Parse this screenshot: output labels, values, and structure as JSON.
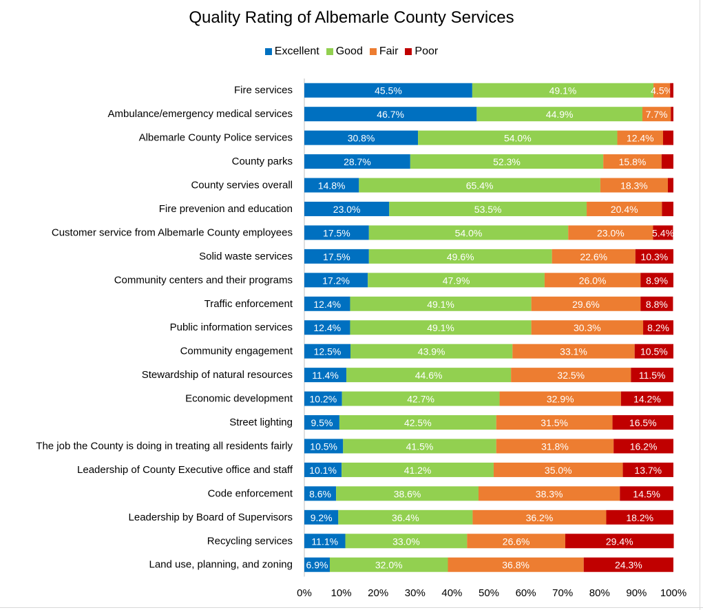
{
  "colors": {
    "Excellent": "#0070C0",
    "Good": "#92D050",
    "Fair": "#ED7D31",
    "Poor": "#C00000",
    "label_text": "#ffffff"
  },
  "chart_data": {
    "type": "bar",
    "orientation": "horizontal",
    "stacked": true,
    "title": "Quality Rating of Albemarle County Services",
    "xlabel": "",
    "ylabel": "",
    "xlim": [
      0,
      100
    ],
    "x_ticks": [
      "0%",
      "10%",
      "20%",
      "30%",
      "40%",
      "50%",
      "60%",
      "70%",
      "80%",
      "90%",
      "100%"
    ],
    "legend_position": "top-center",
    "grid": false,
    "categories": [
      "Fire services",
      "Ambulance/emergency medical services",
      "Albemarle County Police services",
      "County parks",
      "County servies overall",
      "Fire prevenion and education",
      "Customer service from Albemarle County employees",
      "Solid waste services",
      "Community centers and their programs",
      "Traffic enforcement",
      "Public information services",
      "Community engagement",
      "Stewardship of natural resources",
      "Economic development",
      "Street lighting",
      "The job the County is doing in treating all residents fairly",
      "Leadership of County Executive office and staff",
      "Code enforcement",
      "Leadership by Board of Supervisors",
      "Recycling services",
      "Land use, planning, and zoning"
    ],
    "series": [
      {
        "name": "Excellent",
        "values": [
          45.5,
          46.7,
          30.8,
          28.7,
          14.8,
          23.0,
          17.5,
          17.5,
          17.2,
          12.4,
          12.4,
          12.5,
          11.4,
          10.2,
          9.5,
          10.5,
          10.1,
          8.6,
          9.2,
          11.1,
          6.9
        ],
        "labels": [
          "45.5%",
          "46.7%",
          "30.8%",
          "28.7%",
          "14.8%",
          "23.0%",
          "17.5%",
          "17.5%",
          "17.2%",
          "12.4%",
          "12.4%",
          "12.5%",
          "11.4%",
          "10.2%",
          "9.5%",
          "10.5%",
          "10.1%",
          "8.6%",
          "9.2%",
          "11.1%",
          "6.9%"
        ]
      },
      {
        "name": "Good",
        "values": [
          49.1,
          44.9,
          54.0,
          52.3,
          65.4,
          53.5,
          54.0,
          49.6,
          47.9,
          49.1,
          49.1,
          43.9,
          44.6,
          42.7,
          42.5,
          41.5,
          41.2,
          38.6,
          36.4,
          33.0,
          32.0
        ],
        "labels": [
          "49.1%",
          "44.9%",
          "54.0%",
          "52.3%",
          "65.4%",
          "53.5%",
          "54.0%",
          "49.6%",
          "47.9%",
          "49.1%",
          "49.1%",
          "43.9%",
          "44.6%",
          "42.7%",
          "42.5%",
          "41.5%",
          "41.2%",
          "38.6%",
          "36.4%",
          "33.0%",
          "32.0%"
        ]
      },
      {
        "name": "Fair",
        "values": [
          4.5,
          7.7,
          12.4,
          15.8,
          18.3,
          20.4,
          23.0,
          22.6,
          26.0,
          29.6,
          30.3,
          33.1,
          32.5,
          32.9,
          31.5,
          31.8,
          35.0,
          38.3,
          36.2,
          26.6,
          36.8
        ],
        "labels": [
          "4.5%",
          "7.7%",
          "12.4%",
          "15.8%",
          "18.3%",
          "20.4%",
          "23.0%",
          "22.6%",
          "26.0%",
          "29.6%",
          "30.3%",
          "33.1%",
          "32.5%",
          "32.9%",
          "31.5%",
          "31.8%",
          "35.0%",
          "38.3%",
          "36.2%",
          "26.6%",
          "36.8%"
        ]
      },
      {
        "name": "Poor",
        "values": [
          0.9,
          0.7,
          2.8,
          3.2,
          1.5,
          3.1,
          5.4,
          10.3,
          8.9,
          8.8,
          8.2,
          10.5,
          11.5,
          14.2,
          16.5,
          16.2,
          13.7,
          14.5,
          18.2,
          29.4,
          24.3
        ],
        "labels": [
          "",
          "",
          "",
          "",
          "",
          "",
          "5.4%",
          "10.3%",
          "8.9%",
          "8.8%",
          "8.2%",
          "10.5%",
          "11.5%",
          "14.2%",
          "16.5%",
          "16.2%",
          "13.7%",
          "14.5%",
          "18.2%",
          "29.4%",
          "24.3%"
        ]
      }
    ]
  }
}
